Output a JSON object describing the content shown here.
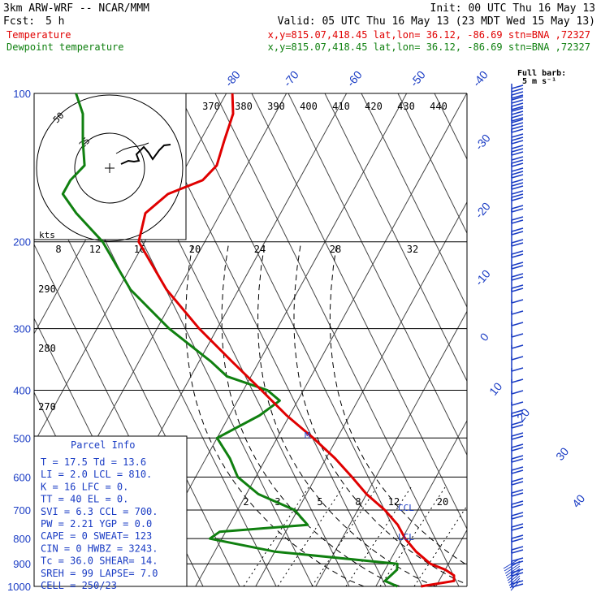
{
  "header": {
    "model": "3km ARW-WRF -- NCAR/MMM",
    "init": "Init: 00 UTC Thu 16 May 13",
    "fcst_label": "Fcst:",
    "fcst_value": "5 h",
    "valid": "Valid: 05 UTC Thu 16 May 13 (23 MDT Wed 15 May 13)",
    "temp_name": "Temperature",
    "temp_info": "x,y=815.07,418.45   lat,lon= 36.12, -86.69  stn=BNA ,72327",
    "dew_name": "Dewpoint temperature",
    "dew_info": "x,y=815.07,418.45   lat,lon= 36.12, -86.69  stn=BNA ,72327"
  },
  "colors": {
    "temperature": "#e00000",
    "dewpoint": "#108010",
    "axes_text": "#1a3cc4",
    "barbs": "#1a3cc4"
  },
  "chart_data": {
    "type": "line",
    "y_axis": "pressure (hPa), log scale",
    "pressure_levels": [
      100,
      200,
      300,
      400,
      500,
      600,
      700,
      800,
      900,
      1000
    ],
    "pressure_labels": [
      "100",
      "200",
      "300",
      "400",
      "500",
      "600",
      "700",
      "800",
      "900",
      "1000"
    ],
    "ylim": [
      1000,
      100
    ],
    "isotherm_labels": [
      "-80",
      "-70",
      "-60",
      "-50",
      "-40",
      "-30",
      "-20",
      "-10",
      "0",
      "10",
      "20",
      "30",
      "40"
    ],
    "theta_labels": [
      "370",
      "380",
      "390",
      "400",
      "410",
      "420",
      "430",
      "440"
    ],
    "mixing_ratio_labels": [
      "2",
      "3",
      "5",
      "8",
      "12",
      "20"
    ],
    "theta_side_labels": [
      "290",
      "280",
      "270"
    ],
    "series": [
      {
        "name": "Temperature",
        "color": "#e00000",
        "points": [
          [
            1000,
            17.5
          ],
          [
            975,
            22.5
          ],
          [
            950,
            22.0
          ],
          [
            925,
            20.0
          ],
          [
            900,
            17.0
          ],
          [
            850,
            13.5
          ],
          [
            800,
            10.5
          ],
          [
            750,
            8.0
          ],
          [
            700,
            4.5
          ],
          [
            650,
            0.0
          ],
          [
            600,
            -4.0
          ],
          [
            550,
            -8.5
          ],
          [
            500,
            -14.0
          ],
          [
            450,
            -20.5
          ],
          [
            400,
            -27.0
          ],
          [
            350,
            -34.5
          ],
          [
            300,
            -43.0
          ],
          [
            250,
            -52.0
          ],
          [
            200,
            -61.0
          ],
          [
            175,
            -62.5
          ],
          [
            160,
            -60.5
          ],
          [
            150,
            -56.0
          ],
          [
            140,
            -55.0
          ],
          [
            125,
            -56.0
          ],
          [
            110,
            -57.0
          ],
          [
            100,
            -59.0
          ]
        ]
      },
      {
        "name": "Dewpoint temperature",
        "color": "#108010",
        "points": [
          [
            1000,
            13.6
          ],
          [
            975,
            11.0
          ],
          [
            950,
            11.5
          ],
          [
            925,
            12.0
          ],
          [
            900,
            11.5
          ],
          [
            850,
            -10.0
          ],
          [
            800,
            -22.0
          ],
          [
            775,
            -21.0
          ],
          [
            750,
            -7.0
          ],
          [
            700,
            -10.5
          ],
          [
            650,
            -18.0
          ],
          [
            600,
            -23.0
          ],
          [
            550,
            -26.0
          ],
          [
            500,
            -30.0
          ],
          [
            450,
            -25.0
          ],
          [
            420,
            -23.0
          ],
          [
            400,
            -26.0
          ],
          [
            375,
            -34.0
          ],
          [
            350,
            -38.0
          ],
          [
            300,
            -48.0
          ],
          [
            250,
            -58.0
          ],
          [
            200,
            -67.0
          ],
          [
            175,
            -74.0
          ],
          [
            160,
            -78.0
          ],
          [
            150,
            -78.0
          ],
          [
            140,
            -77.0
          ],
          [
            125,
            -79.5
          ],
          [
            110,
            -82.0
          ],
          [
            100,
            -85.0
          ]
        ]
      }
    ],
    "markers": [
      {
        "label": "LCL",
        "pressure": 810
      },
      {
        "label": "CCL",
        "pressure": 700
      }
    ],
    "hodograph": {
      "units_label": "kts",
      "ring_labels": [
        "25",
        "50"
      ],
      "speed_tick_labels": [
        "8",
        "12",
        "16",
        "20",
        "24",
        "28",
        "32"
      ]
    },
    "barb_legend": {
      "title": "Full barb:",
      "value": "5 m s⁻¹"
    }
  },
  "parcel_info": {
    "title": "Parcel Info",
    "rows": [
      {
        "k1": "T",
        "v1": "17.5",
        "k2": "Td",
        "v2": "13.6"
      },
      {
        "k1": "LI",
        "v1": "2.0",
        "k2": "LCL",
        "v2": "810."
      },
      {
        "k1": "K",
        "v1": "16",
        "k2": "LFC",
        "v2": "0."
      },
      {
        "k1": "TT",
        "v1": "40",
        "k2": "EL",
        "v2": "0."
      },
      {
        "k1": "SVI",
        "v1": "6.3",
        "k2": "CCL",
        "v2": "700."
      },
      {
        "k1": "PW",
        "v1": "2.21",
        "k2": "YGP",
        "v2": "0.0"
      },
      {
        "k1": "CAPE",
        "v1": "0",
        "k2": "SWEAT",
        "v2": "123"
      },
      {
        "k1": "CIN",
        "v1": "0",
        "k2": "HWBZ",
        "v2": "3243."
      },
      {
        "k1": "Tc",
        "v1": "36.0",
        "k2": "SHEAR",
        "v2": "14."
      },
      {
        "k1": "SREH",
        "v1": "99",
        "k2": "LAPSE",
        "v2": "7.0"
      },
      {
        "k1": "CELL",
        "v1": "250/23",
        "k2": "",
        "v2": ""
      }
    ]
  }
}
